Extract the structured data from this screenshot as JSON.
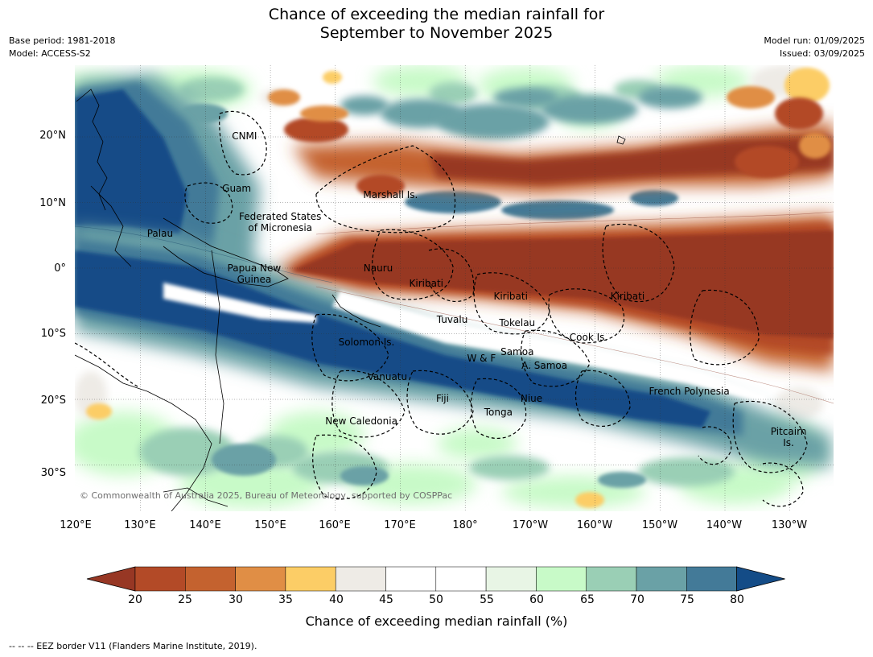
{
  "title_line1": "Chance of exceeding the median rainfall for",
  "title_line2": "September to November 2025",
  "meta_left": [
    "Base period: 1981-2018",
    "Model: ACCESS-S2"
  ],
  "meta_right": [
    "Model run: 01/09/2025",
    "Issued: 03/09/2025"
  ],
  "lat_ticks": [
    "20°N",
    "10°N",
    "0°",
    "10°S",
    "20°S",
    "30°S"
  ],
  "lon_ticks": [
    "120°E",
    "130°E",
    "140°E",
    "150°E",
    "160°E",
    "170°E",
    "180°",
    "170°W",
    "160°W",
    "150°W",
    "140°W",
    "130°W"
  ],
  "regions": [
    {
      "name": "CNMI",
      "lon": 146,
      "lat": 20.1
    },
    {
      "name": "Guam",
      "lon": 144.8,
      "lat": 12.2
    },
    {
      "name": "Marshall Is.",
      "lon": 168.5,
      "lat": 11.2
    },
    {
      "name": "Federated States\nof Micronesia",
      "lon": 151.5,
      "lat": 7
    },
    {
      "name": "Palau",
      "lon": 133,
      "lat": 5.3
    },
    {
      "name": "Papua New\nGuinea",
      "lon": 147.5,
      "lat": -0.8
    },
    {
      "name": "Nauru",
      "lon": 166.6,
      "lat": 0
    },
    {
      "name": "Kiribati",
      "lon": 174,
      "lat": -2.3
    },
    {
      "name": "Kiribati",
      "lon": -173,
      "lat": -4.3
    },
    {
      "name": "Kiribati",
      "lon": -155,
      "lat": -4.3
    },
    {
      "name": "Tuvalu",
      "lon": 178,
      "lat": -7.9
    },
    {
      "name": "Tokelau",
      "lon": -172,
      "lat": -8.3
    },
    {
      "name": "Cook Is.",
      "lon": -161,
      "lat": -10.6
    },
    {
      "name": "Solomon Is.",
      "lon": 164.8,
      "lat": -11.3
    },
    {
      "name": "Samoa",
      "lon": -172,
      "lat": -12.8
    },
    {
      "name": "W & F",
      "lon": -177.5,
      "lat": -13.8
    },
    {
      "name": "A. Samoa",
      "lon": -167.8,
      "lat": -14.8
    },
    {
      "name": "Vanuatu",
      "lon": 168,
      "lat": -16.6
    },
    {
      "name": "French Polynesia",
      "lon": -145.5,
      "lat": -18.8
    },
    {
      "name": "Fiji",
      "lon": 176.5,
      "lat": -19.9
    },
    {
      "name": "Niue",
      "lon": -169.8,
      "lat": -19.9
    },
    {
      "name": "Tonga",
      "lon": -174.9,
      "lat": -22
    },
    {
      "name": "New Caledonia",
      "lon": 164,
      "lat": -23.3
    },
    {
      "name": "Pitcairn\nIs.",
      "lon": -130.2,
      "lat": -25.8
    }
  ],
  "copyright": "© Commonwealth of Australia 2025, Bureau of Meteorology, supported by COSPPac",
  "colorbar": {
    "ticks": [
      "20",
      "25",
      "30",
      "35",
      "40",
      "45",
      "50",
      "55",
      "60",
      "65",
      "70",
      "75",
      "80"
    ],
    "colors": [
      "#b34a27",
      "#c4622f",
      "#e08e45",
      "#fccd66",
      "#eeebe6",
      "#ffffff",
      "#ffffff",
      "#e8f5e5",
      "#c8fac8",
      "#9acfb5",
      "#6aa1a6",
      "#437a98"
    ],
    "under_color": "#973724",
    "over_color": "#144c87",
    "label": "Chance of exceeding median rainfall (%)"
  },
  "footnote": "--  --  -- EEZ border V11 (Flanders Marine Institute, 2019)."
}
